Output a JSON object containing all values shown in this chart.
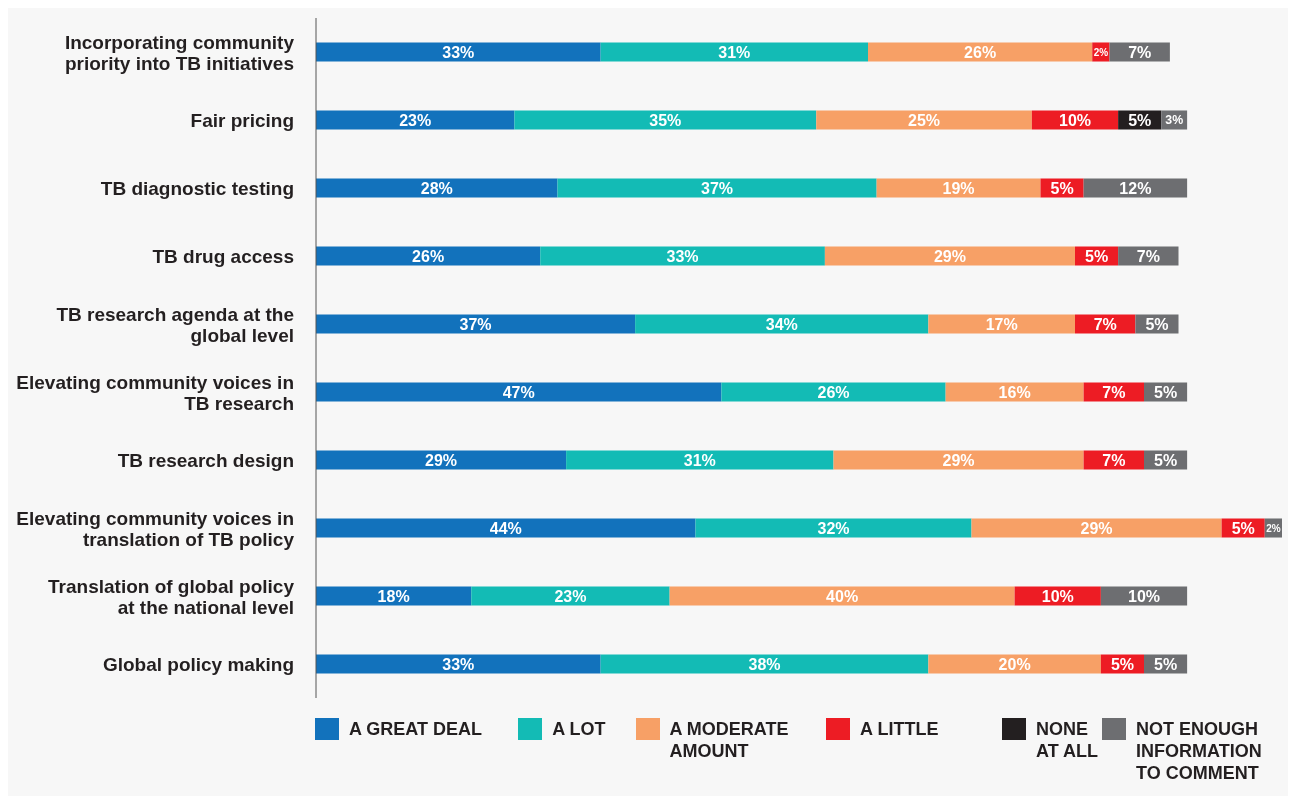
{
  "chart_data": {
    "type": "bar",
    "orientation": "horizontal",
    "stacked": true,
    "categories": [
      "Incorporating community priority into TB initiatives",
      "Fair pricing",
      "TB diagnostic testing",
      "TB drug access",
      "TB research agenda at the global level",
      "Elevating community voices in TB research",
      "TB research design",
      "Elevating community voices in translation of TB policy",
      "Translation of global policy at the national level",
      "Global policy making"
    ],
    "series": [
      {
        "name": "A GREAT DEAL",
        "color": "#1272bc",
        "values": [
          33,
          23,
          28,
          26,
          37,
          47,
          29,
          44,
          18,
          33
        ],
        "value_labels": [
          "33%",
          "23%",
          "28%",
          "26%",
          "37%",
          "47%",
          "29%",
          "44%",
          "18%",
          "33%"
        ]
      },
      {
        "name": "A LOT",
        "color": "#13bbb5",
        "values": [
          31,
          35,
          37,
          33,
          34,
          26,
          31,
          32,
          23,
          38
        ],
        "value_labels": [
          "31%",
          "35%",
          "37%",
          "33%",
          "34%",
          "26%",
          "31%",
          "32%",
          "23%",
          "38%"
        ]
      },
      {
        "name": "A MODERATE AMOUNT",
        "color": "#f7a066",
        "values": [
          26,
          25,
          19,
          29,
          17,
          16,
          29,
          29,
          40,
          20
        ],
        "value_labels": [
          "26%",
          "25%",
          "19%",
          "29%",
          "17%",
          "16%",
          "29%",
          "29%",
          "40%",
          "20%"
        ]
      },
      {
        "name": "A LITTLE",
        "color": "#ed1c24",
        "values": [
          2,
          10,
          5,
          5,
          7,
          7,
          7,
          5,
          10,
          5
        ],
        "value_labels": [
          "2%",
          "10%",
          "5%",
          "5%",
          "7%",
          "7%",
          "7%",
          "5%",
          "10%",
          "5%"
        ]
      },
      {
        "name": "NONE AT ALL",
        "color": "#231f20",
        "values": [
          null,
          5,
          null,
          null,
          null,
          null,
          null,
          null,
          null,
          null
        ],
        "value_labels": [
          null,
          "5%",
          null,
          null,
          null,
          null,
          null,
          null,
          null,
          null
        ]
      },
      {
        "name": "NOT ENOUGH INFORMATION TO COMMENT",
        "color": "#6d6e71",
        "values": [
          7,
          3,
          12,
          7,
          5,
          5,
          5,
          2,
          10,
          5
        ],
        "value_labels": [
          "7%",
          "3%",
          "12%",
          "7%",
          "5%",
          "5%",
          "5%",
          "2%",
          "10%",
          "5%"
        ]
      }
    ],
    "tick_labels": "y",
    "legend": "bottom"
  }
}
